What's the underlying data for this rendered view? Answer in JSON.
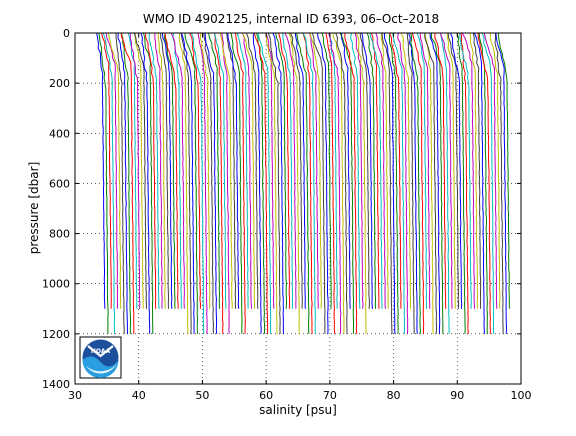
{
  "chart_data": {
    "type": "line",
    "title": "WMO ID 4902125, internal ID 6393, 06–Oct–2018",
    "xlabel": "salinity [psu]",
    "ylabel": "pressure [dbar]",
    "xlim": [
      30,
      100
    ],
    "ylim": [
      0,
      1400
    ],
    "y_reversed": true,
    "x_ticks": [
      30,
      40,
      50,
      60,
      70,
      80,
      90,
      100
    ],
    "y_ticks": [
      0,
      200,
      400,
      600,
      800,
      1000,
      1200,
      1400
    ],
    "x_tick_labels": [
      "30",
      "40",
      "50",
      "60",
      "70",
      "80",
      "90",
      "100"
    ],
    "y_tick_labels": [
      "0",
      "200",
      "400",
      "600",
      "800",
      "1000",
      "1200",
      "1400"
    ],
    "grid": true,
    "series_style": "waterfall of salinity profiles, each successive profile offset by ~0.5 psu",
    "profiles": {
      "count": 128,
      "offset_step_psu": 0.5,
      "first_profile_base_salinity": 34.3,
      "surface_salinity_anomaly": -1.2,
      "mixed_layer_depth_dbar": 160,
      "deep_salinity_gradient_per_dbar": 0.0004,
      "max_pressure_dbar": [
        1100,
        1200
      ],
      "colors": [
        "#0000ff",
        "#008000",
        "#ff0000",
        "#00bfbf",
        "#bf00bf",
        "#bfbf00",
        "#404040"
      ]
    }
  },
  "logo": {
    "name": "noaa-logo",
    "text": "NOAA"
  }
}
